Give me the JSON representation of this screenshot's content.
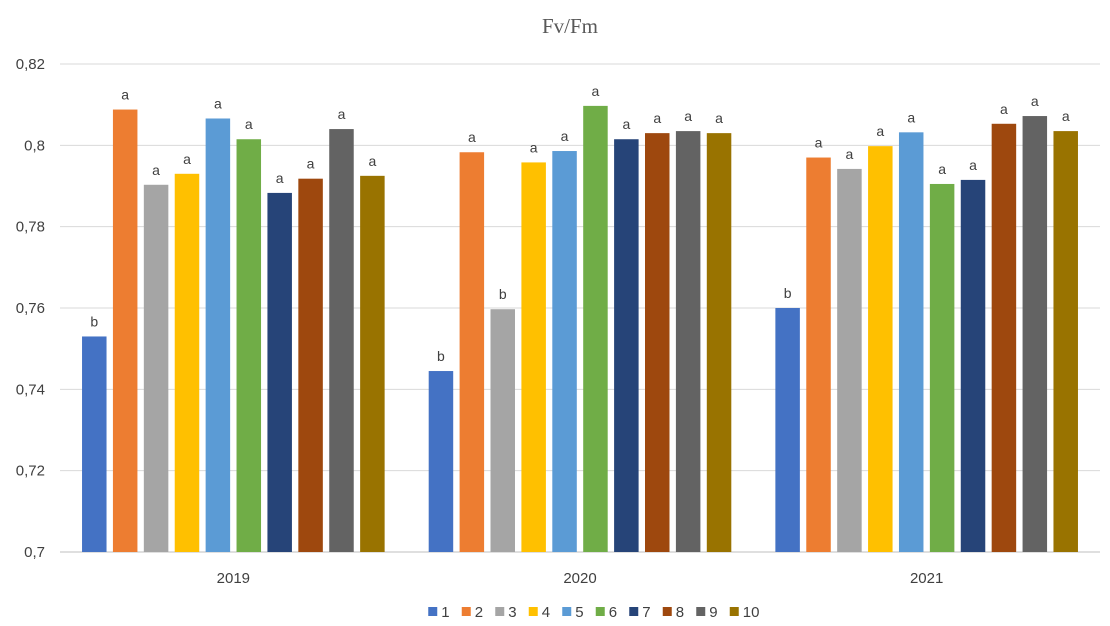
{
  "chart_data": {
    "type": "bar",
    "title": "Fv/Fm",
    "xlabel": "",
    "ylabel": "",
    "ylim": [
      0.7,
      0.82
    ],
    "yticks": [
      "0,7",
      "0,72",
      "0,74",
      "0,76",
      "0,78",
      "0,8",
      "0,82"
    ],
    "grid": true,
    "legend_position": "bottom",
    "categories": [
      "2019",
      "2020",
      "2021"
    ],
    "series": [
      {
        "name": "1",
        "color": "#4472C4",
        "values": [
          0.753,
          0.7445,
          0.76
        ],
        "labels": [
          "b",
          "b",
          "b"
        ]
      },
      {
        "name": "2",
        "color": "#ED7D31",
        "values": [
          0.8088,
          0.7983,
          0.797
        ],
        "labels": [
          "a",
          "a",
          "a"
        ]
      },
      {
        "name": "3",
        "color": "#A5A5A5",
        "values": [
          0.7903,
          0.7597,
          0.7942
        ],
        "labels": [
          "a",
          "b",
          "a"
        ]
      },
      {
        "name": "4",
        "color": "#FFC000",
        "values": [
          0.793,
          0.7958,
          0.7998
        ],
        "labels": [
          "a",
          "a",
          "a"
        ]
      },
      {
        "name": "5",
        "color": "#5B9BD5",
        "values": [
          0.8066,
          0.7986,
          0.8032
        ],
        "labels": [
          "a",
          "a",
          "a"
        ]
      },
      {
        "name": "6",
        "color": "#70AD47",
        "values": [
          0.8015,
          0.8097,
          0.7905
        ],
        "labels": [
          "a",
          "a",
          "a"
        ]
      },
      {
        "name": "7",
        "color": "#264478",
        "values": [
          0.7883,
          0.8015,
          0.7915
        ],
        "labels": [
          "a",
          "a",
          "a"
        ]
      },
      {
        "name": "8",
        "color": "#9E480E",
        "values": [
          0.7918,
          0.803,
          0.8053
        ],
        "labels": [
          "a",
          "a",
          "a"
        ]
      },
      {
        "name": "9",
        "color": "#636363",
        "values": [
          0.804,
          0.8035,
          0.8072
        ],
        "labels": [
          "a",
          "a",
          "a"
        ]
      },
      {
        "name": "10",
        "color": "#997300",
        "values": [
          0.7925,
          0.803,
          0.8035
        ],
        "labels": [
          "a",
          "a",
          "a"
        ]
      }
    ]
  }
}
